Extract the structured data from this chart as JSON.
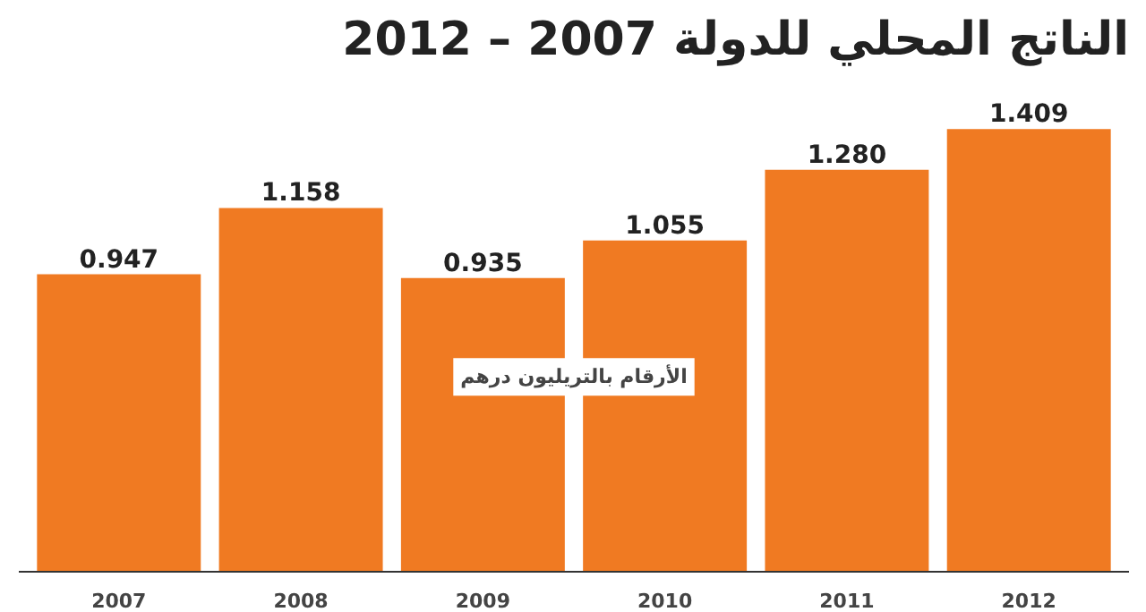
{
  "chart_data": {
    "type": "bar",
    "title": "الناتج المحلي للدولة 2007 – 2012",
    "categories": [
      "2007",
      "2008",
      "2009",
      "2010",
      "2011",
      "2012"
    ],
    "values": [
      0.947,
      1.158,
      0.935,
      1.055,
      1.28,
      1.409
    ],
    "color": "#f07a22",
    "value_labels": [
      "0.947",
      "1.158",
      "0.935",
      "1.055",
      "1.280",
      "1.409"
    ],
    "annotations": [
      "الأرقام بالتريليون درهم"
    ]
  }
}
